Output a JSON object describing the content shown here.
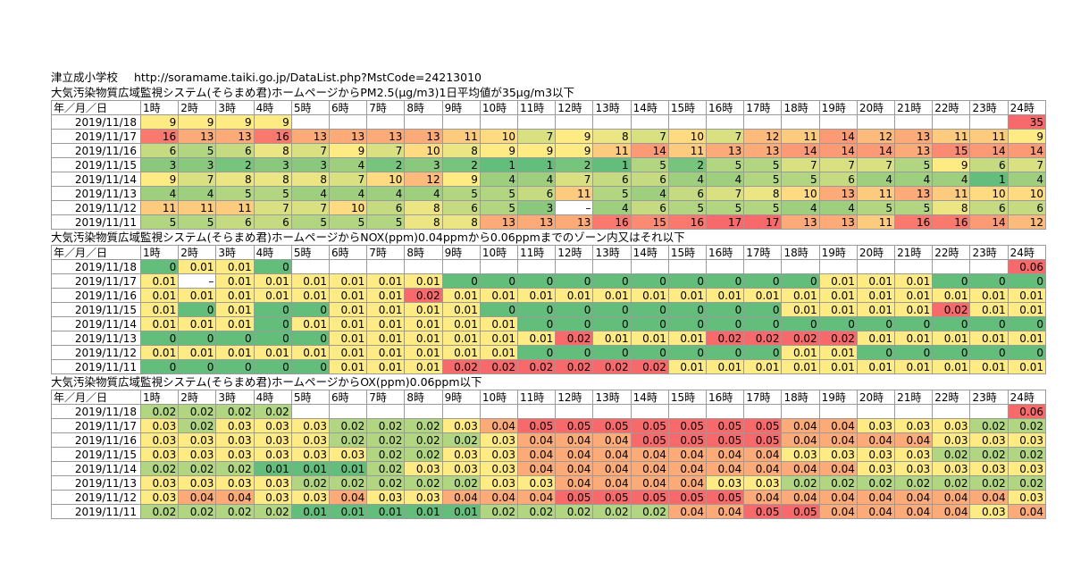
{
  "site": {
    "name": "津立成小学校",
    "url": "http://soramame.taiki.go.jp/DataList.php?MstCode=24213010"
  },
  "header_labels": {
    "date_col": "年／月／日",
    "hours": [
      "1時",
      "2時",
      "3時",
      "4時",
      "5時",
      "6時",
      "7時",
      "8時",
      "9時",
      "10時",
      "11時",
      "12時",
      "13時",
      "14時",
      "15時",
      "16時",
      "17時",
      "18時",
      "19時",
      "20時",
      "21時",
      "22時",
      "23時",
      "24時"
    ]
  },
  "dates": [
    "2019/11/18",
    "2019/11/17",
    "2019/11/16",
    "2019/11/15",
    "2019/11/14",
    "2019/11/13",
    "2019/11/12",
    "2019/11/11"
  ],
  "colors": {
    "green": "#63be7b",
    "yellow": "#ffeb84",
    "red": "#f8696b"
  },
  "tables": [
    {
      "title": "大気汚染物質広域監視システム(そらまめ君)ホームページからPM2.5(μg/m3)1日平均値が35μg/m3以下",
      "min": 1,
      "max": 17,
      "rows": [
        [
          "9",
          "9",
          "9",
          "9",
          "",
          "",
          "",
          "",
          "",
          "",
          "",
          "",
          "",
          "",
          "",
          "",
          "",
          "",
          "",
          "",
          "",
          "",
          "",
          "35"
        ],
        [
          "16",
          "13",
          "13",
          "16",
          "13",
          "13",
          "13",
          "13",
          "11",
          "10",
          "7",
          "9",
          "8",
          "7",
          "10",
          "7",
          "12",
          "11",
          "14",
          "12",
          "13",
          "11",
          "11",
          "9"
        ],
        [
          "6",
          "5",
          "6",
          "8",
          "7",
          "9",
          "7",
          "10",
          "8",
          "9",
          "9",
          "9",
          "11",
          "14",
          "11",
          "13",
          "13",
          "14",
          "14",
          "14",
          "13",
          "15",
          "14",
          "14"
        ],
        [
          "3",
          "3",
          "2",
          "3",
          "3",
          "4",
          "2",
          "3",
          "2",
          "1",
          "1",
          "2",
          "1",
          "5",
          "2",
          "5",
          "5",
          "7",
          "7",
          "7",
          "5",
          "9",
          "6",
          "7"
        ],
        [
          "9",
          "7",
          "8",
          "8",
          "8",
          "7",
          "10",
          "12",
          "9",
          "4",
          "4",
          "7",
          "6",
          "6",
          "4",
          "4",
          "5",
          "5",
          "6",
          "4",
          "4",
          "4",
          "1",
          "4"
        ],
        [
          "4",
          "4",
          "5",
          "5",
          "4",
          "4",
          "4",
          "4",
          "5",
          "5",
          "6",
          "11",
          "5",
          "4",
          "6",
          "7",
          "8",
          "10",
          "13",
          "11",
          "13",
          "11",
          "10",
          "10"
        ],
        [
          "11",
          "11",
          "11",
          "7",
          "7",
          "10",
          "6",
          "8",
          "6",
          "5",
          "3",
          "–",
          "4",
          "6",
          "5",
          "5",
          "5",
          "4",
          "4",
          "5",
          "5",
          "8",
          "6",
          "6"
        ],
        [
          "5",
          "5",
          "6",
          "6",
          "5",
          "5",
          "5",
          "8",
          "8",
          "13",
          "13",
          "13",
          "16",
          "15",
          "16",
          "17",
          "17",
          "13",
          "13",
          "11",
          "16",
          "16",
          "14",
          "12"
        ]
      ]
    },
    {
      "title": "大気汚染物質広域監視システム(そらまめ君)ホームページからNOX(ppm)0.04ppmから0.06ppmまでのゾーン内又はそれ以下",
      "min": 0,
      "max": 0.02,
      "rows": [
        [
          "0",
          "0.01",
          "0.01",
          "0",
          "",
          "",
          "",
          "",
          "",
          "",
          "",
          "",
          "",
          "",
          "",
          "",
          "",
          "",
          "",
          "",
          "",
          "",
          "",
          "0.06"
        ],
        [
          "0.01",
          "–",
          "0.01",
          "0.01",
          "0.01",
          "0.01",
          "0.01",
          "0.01",
          "0",
          "0",
          "0",
          "0",
          "0",
          "0",
          "0",
          "0",
          "0",
          "0",
          "0.01",
          "0.01",
          "0.01",
          "0",
          "0",
          "0"
        ],
        [
          "0.01",
          "0.01",
          "0.01",
          "0.01",
          "0.01",
          "0.01",
          "0.01",
          "0.02",
          "0.01",
          "0.01",
          "0.01",
          "0.01",
          "0.01",
          "0.01",
          "0.01",
          "0.01",
          "0.01",
          "0.01",
          "0.01",
          "0.01",
          "0.01",
          "0.01",
          "0.01",
          "0.01"
        ],
        [
          "0.01",
          "0",
          "0.01",
          "0",
          "0",
          "0.01",
          "0.01",
          "0.01",
          "0.01",
          "0",
          "0",
          "0",
          "0",
          "0",
          "0",
          "0",
          "0",
          "0.01",
          "0.01",
          "0.01",
          "0.01",
          "0.02",
          "0.01",
          "0.01"
        ],
        [
          "0.01",
          "0.01",
          "0.01",
          "0",
          "0.01",
          "0.01",
          "0.01",
          "0.01",
          "0.01",
          "0.01",
          "0",
          "0",
          "0",
          "0",
          "0",
          "0",
          "0",
          "0",
          "0",
          "0",
          "0",
          "0",
          "0",
          "0"
        ],
        [
          "0",
          "0",
          "0",
          "0",
          "0",
          "0.01",
          "0.01",
          "0.01",
          "0.01",
          "0.01",
          "0.01",
          "0.02",
          "0.01",
          "0.01",
          "0.01",
          "0.02",
          "0.02",
          "0.02",
          "0.02",
          "0.01",
          "0.01",
          "0.01",
          "0.01",
          "0.01"
        ],
        [
          "0.01",
          "0.01",
          "0.01",
          "0.01",
          "0.01",
          "0.01",
          "0.01",
          "0.01",
          "0.01",
          "0.01",
          "0",
          "0",
          "0",
          "0",
          "0",
          "0",
          "0",
          "0.01",
          "0.01",
          "0",
          "0",
          "0",
          "0",
          "0"
        ],
        [
          "0",
          "0",
          "0",
          "0",
          "0",
          "0.01",
          "0.01",
          "0.01",
          "0.02",
          "0.02",
          "0.02",
          "0.02",
          "0.02",
          "0.02",
          "0.01",
          "0.01",
          "0.01",
          "0.01",
          "0.01",
          "0.01",
          "0.01",
          "0.01",
          "0.01",
          "0.01"
        ]
      ]
    },
    {
      "title": "大気汚染物質広域監視システム(そらまめ君)ホームページからOX(ppm)0.06ppm以下",
      "min": 0.01,
      "max": 0.05,
      "rows": [
        [
          "0.02",
          "0.02",
          "0.02",
          "0.02",
          "",
          "",
          "",
          "",
          "",
          "",
          "",
          "",
          "",
          "",
          "",
          "",
          "",
          "",
          "",
          "",
          "",
          "",
          "",
          "0.06"
        ],
        [
          "0.03",
          "0.02",
          "0.03",
          "0.03",
          "0.03",
          "0.02",
          "0.02",
          "0.02",
          "0.03",
          "0.04",
          "0.05",
          "0.05",
          "0.05",
          "0.05",
          "0.05",
          "0.05",
          "0.05",
          "0.04",
          "0.04",
          "0.03",
          "0.03",
          "0.03",
          "0.02",
          "0.02"
        ],
        [
          "0.03",
          "0.03",
          "0.03",
          "0.03",
          "0.03",
          "0.02",
          "0.02",
          "0.02",
          "0.02",
          "0.03",
          "0.04",
          "0.04",
          "0.04",
          "0.05",
          "0.05",
          "0.05",
          "0.05",
          "0.04",
          "0.04",
          "0.04",
          "0.04",
          "0.03",
          "0.03",
          "0.03"
        ],
        [
          "0.03",
          "0.03",
          "0.03",
          "0.03",
          "0.03",
          "0.03",
          "0.02",
          "0.02",
          "0.03",
          "0.03",
          "0.04",
          "0.04",
          "0.04",
          "0.04",
          "0.04",
          "0.04",
          "0.04",
          "0.03",
          "0.03",
          "0.03",
          "0.03",
          "0.02",
          "0.02",
          "0.02"
        ],
        [
          "0.02",
          "0.02",
          "0.02",
          "0.01",
          "0.01",
          "0.01",
          "0.02",
          "0.03",
          "0.03",
          "0.03",
          "0.04",
          "0.04",
          "0.04",
          "0.04",
          "0.04",
          "0.04",
          "0.04",
          "0.04",
          "0.04",
          "0.03",
          "0.03",
          "0.03",
          "0.03",
          "0.03"
        ],
        [
          "0.03",
          "0.03",
          "0.03",
          "0.03",
          "0.02",
          "0.02",
          "0.02",
          "0.02",
          "0.02",
          "0.03",
          "0.03",
          "0.04",
          "0.04",
          "0.04",
          "0.04",
          "0.03",
          "0.03",
          "0.02",
          "0.02",
          "0.02",
          "0.02",
          "0.02",
          "0.02",
          "0.02"
        ],
        [
          "0.03",
          "0.04",
          "0.04",
          "0.03",
          "0.03",
          "0.04",
          "0.03",
          "0.03",
          "0.04",
          "0.04",
          "0.04",
          "0.05",
          "0.05",
          "0.05",
          "0.05",
          "0.05",
          "0.04",
          "0.04",
          "0.04",
          "0.04",
          "0.04",
          "0.04",
          "0.04",
          "0.03"
        ],
        [
          "0.02",
          "0.02",
          "0.02",
          "0.02",
          "0.01",
          "0.01",
          "0.01",
          "0.01",
          "0.01",
          "0.02",
          "0.02",
          "0.02",
          "0.02",
          "0.02",
          "0.04",
          "0.04",
          "0.05",
          "0.05",
          "0.04",
          "0.04",
          "0.04",
          "0.04",
          "0.03",
          "0.04"
        ]
      ]
    }
  ]
}
